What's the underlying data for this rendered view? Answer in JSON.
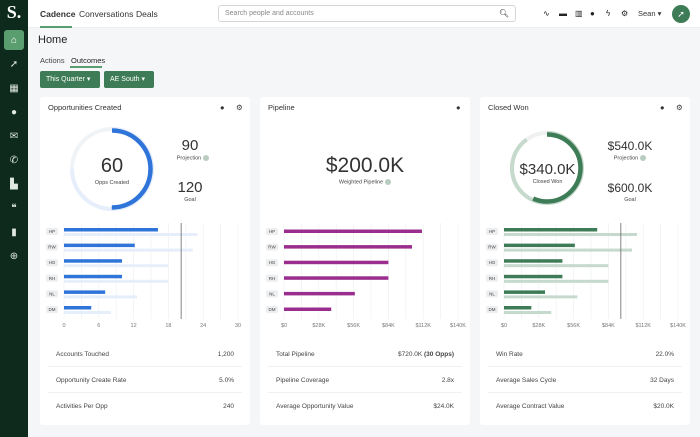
{
  "logo": "S.",
  "sidebar": {
    "items": [
      {
        "icon": "home-icon",
        "glyph": "⌂",
        "active": true
      },
      {
        "icon": "rocket-icon",
        "glyph": "➚"
      },
      {
        "icon": "building-icon",
        "glyph": "▦"
      },
      {
        "icon": "person-icon",
        "glyph": "●"
      },
      {
        "icon": "mail-icon",
        "glyph": "✉"
      },
      {
        "icon": "phone-icon",
        "glyph": "✆"
      },
      {
        "icon": "document-icon",
        "glyph": "▙"
      },
      {
        "icon": "quote-icon",
        "glyph": "❝"
      },
      {
        "icon": "bar-chart-icon",
        "glyph": "▮"
      },
      {
        "icon": "crosshair-icon",
        "glyph": "⊕"
      }
    ]
  },
  "topnav": {
    "tabs": [
      "Cadence",
      "Conversations",
      "Deals"
    ],
    "search_placeholder": "Search people and accounts",
    "user": "Sean"
  },
  "page": {
    "title": "Home",
    "subtabs": [
      "Actions",
      "Outcomes"
    ],
    "filters": [
      "This Quarter",
      "AE South"
    ]
  },
  "colors": {
    "opps": "#2f74d9",
    "opps_light": "#e6eefb",
    "pipeline": "#9a2d8e",
    "won": "#3d7c56",
    "won_light": "#c6d9cd",
    "sidebar": "#0e2a1d"
  },
  "cards": [
    {
      "title": "Opportunities Created",
      "center_value": "60",
      "center_label": "Opps Created",
      "projection_value": "90",
      "projection_label": "Projection",
      "goal_value": "120",
      "goal_label": "Goal",
      "stats": [
        {
          "label": "Accounts Touched",
          "value": "1,200"
        },
        {
          "label": "Opportunity Create Rate",
          "value": "5.0%"
        },
        {
          "label": "Activities Per Opp",
          "value": "240"
        }
      ]
    },
    {
      "title": "Pipeline",
      "center_value": "$200.0K",
      "center_label": "Weighted Pipeline",
      "stats": [
        {
          "label": "Total Pipeline",
          "value": "$720.0K",
          "value_bold": "(30 Opps)"
        },
        {
          "label": "Pipeline Coverage",
          "value": "2.8x"
        },
        {
          "label": "Average Opportunity Value",
          "value": "$24.0K"
        }
      ]
    },
    {
      "title": "Closed Won",
      "center_value": "$340.0K",
      "center_label": "Closed Won",
      "projection_value": "$540.0K",
      "projection_label": "Projection",
      "goal_value": "$600.0K",
      "goal_label": "Goal",
      "stats": [
        {
          "label": "Win Rate",
          "value": "22.0%"
        },
        {
          "label": "Average Sales Cycle",
          "value": "32 Days"
        },
        {
          "label": "Average Contract Value",
          "value": "$20.0K"
        }
      ]
    }
  ],
  "chart_data": [
    {
      "type": "bar",
      "categories": [
        "HP",
        "RW",
        "HG",
        "RH",
        "NL",
        "DM"
      ],
      "series": [
        {
          "values": [
            16.2,
            12.2,
            10,
            10,
            7.1,
            4.7
          ]
        },
        {
          "values": [
            23,
            22.2,
            18,
            18,
            12.6,
            8.1
          ]
        }
      ],
      "goal_line": 20.2,
      "xlim": [
        0,
        30
      ],
      "xticks": [
        "0",
        "6",
        "12",
        "18",
        "24",
        "30"
      ],
      "ring": {
        "value": 60,
        "projection": 90,
        "goal": 120
      }
    },
    {
      "type": "bar",
      "categories": [
        "HP",
        "RW",
        "HG",
        "RH",
        "NL",
        "DM"
      ],
      "series": [
        {
          "values": [
            111,
            103,
            84,
            84,
            57,
            38
          ]
        }
      ],
      "xlim": [
        0,
        140
      ],
      "xticks": [
        "$0",
        "$28K",
        "$56K",
        "$84K",
        "$112K",
        "$140K"
      ]
    },
    {
      "type": "bar",
      "categories": [
        "HP",
        "RW",
        "HG",
        "RH",
        "NL",
        "DM"
      ],
      "series": [
        {
          "values": [
            75,
            57,
            47,
            47,
            33,
            22
          ]
        },
        {
          "values": [
            107,
            103,
            84,
            84,
            59,
            38
          ]
        }
      ],
      "goal_line": 94,
      "xlim": [
        0,
        140
      ],
      "xticks": [
        "$0",
        "$28K",
        "$56K",
        "$84K",
        "$112K",
        "$140K"
      ],
      "ring": {
        "value": 340,
        "projection": 540,
        "goal": 600
      }
    }
  ]
}
